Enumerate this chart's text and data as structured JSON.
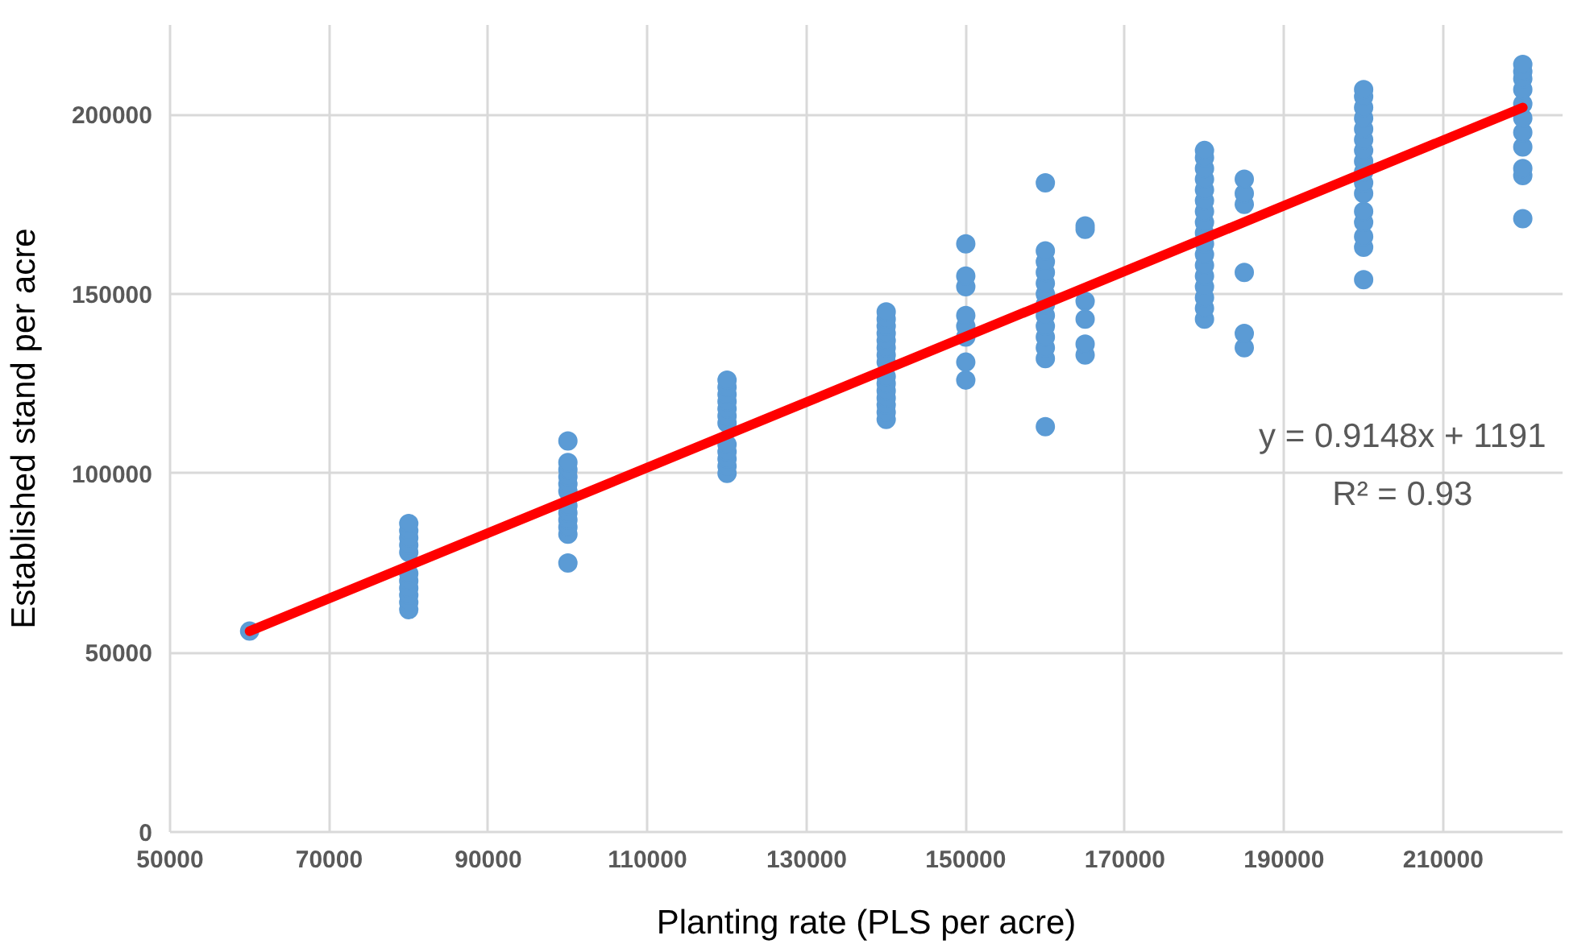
{
  "chart_data": {
    "type": "scatter",
    "xlabel": "Planting rate (PLS per acre)",
    "ylabel": "Established stand per acre",
    "xlim": [
      50000,
      225000
    ],
    "ylim": [
      0,
      225000
    ],
    "xticks": [
      50000,
      70000,
      90000,
      110000,
      130000,
      150000,
      170000,
      190000,
      210000
    ],
    "yticks": [
      0,
      50000,
      100000,
      150000,
      200000
    ],
    "grid": true,
    "marker": "circle",
    "series": [
      {
        "color": "#5b9bd5",
        "x": [
          60000,
          80000,
          80000,
          80000,
          80000,
          80000,
          80000,
          80000,
          80000,
          80000,
          80000,
          80000,
          100000,
          100000,
          100000,
          100000,
          100000,
          100000,
          100000,
          100000,
          100000,
          100000,
          100000,
          100000,
          120000,
          120000,
          120000,
          120000,
          120000,
          120000,
          120000,
          120000,
          120000,
          120000,
          120000,
          120000,
          140000,
          140000,
          140000,
          140000,
          140000,
          140000,
          140000,
          140000,
          140000,
          140000,
          140000,
          140000,
          140000,
          140000,
          140000,
          150000,
          150000,
          150000,
          150000,
          150000,
          150000,
          150000,
          150000,
          160000,
          160000,
          160000,
          160000,
          160000,
          160000,
          160000,
          160000,
          160000,
          160000,
          160000,
          160000,
          160000,
          165000,
          165000,
          165000,
          165000,
          165000,
          165000,
          180000,
          180000,
          180000,
          180000,
          180000,
          180000,
          180000,
          180000,
          180000,
          180000,
          180000,
          180000,
          180000,
          180000,
          180000,
          180000,
          180000,
          185000,
          185000,
          185000,
          185000,
          185000,
          185000,
          200000,
          200000,
          200000,
          200000,
          200000,
          200000,
          200000,
          200000,
          200000,
          200000,
          200000,
          200000,
          200000,
          200000,
          200000,
          200000,
          220000,
          220000,
          220000,
          220000,
          220000,
          220000,
          220000,
          220000,
          220000,
          220000,
          220000
        ],
        "values": [
          56000,
          62000,
          64000,
          66000,
          68000,
          70000,
          72000,
          78000,
          80000,
          82000,
          84000,
          86000,
          75000,
          83000,
          85000,
          87000,
          89000,
          91000,
          95000,
          97000,
          99000,
          101000,
          103000,
          109000,
          100000,
          102000,
          104000,
          106000,
          108000,
          114000,
          116000,
          118000,
          120000,
          122000,
          124000,
          126000,
          115000,
          117000,
          119000,
          121000,
          123000,
          125000,
          127000,
          131000,
          133000,
          135000,
          137000,
          139000,
          141000,
          143000,
          145000,
          126000,
          131000,
          138000,
          141000,
          144000,
          152000,
          155000,
          164000,
          113000,
          132000,
          135000,
          138000,
          141000,
          144000,
          147000,
          150000,
          153000,
          156000,
          159000,
          162000,
          181000,
          133000,
          136000,
          143000,
          148000,
          168000,
          169000,
          143000,
          146000,
          149000,
          152000,
          155000,
          158000,
          161000,
          164000,
          167000,
          170000,
          173000,
          176000,
          179000,
          182000,
          185000,
          188000,
          190000,
          135000,
          139000,
          156000,
          175000,
          178000,
          182000,
          154000,
          163000,
          166000,
          170000,
          173000,
          178000,
          181000,
          184000,
          187000,
          190000,
          193000,
          196000,
          199000,
          202000,
          205000,
          207000,
          171000,
          183000,
          185000,
          191000,
          195000,
          199000,
          203000,
          207000,
          210000,
          212000,
          214000
        ]
      },
      {
        "type": "line",
        "color": "#ff0000",
        "x": [
          60000,
          220000
        ],
        "values": [
          56000,
          202000
        ],
        "marker": "none"
      }
    ],
    "annotations": [
      "y = 0.9148x + 1191",
      "R² = 0.93"
    ]
  }
}
